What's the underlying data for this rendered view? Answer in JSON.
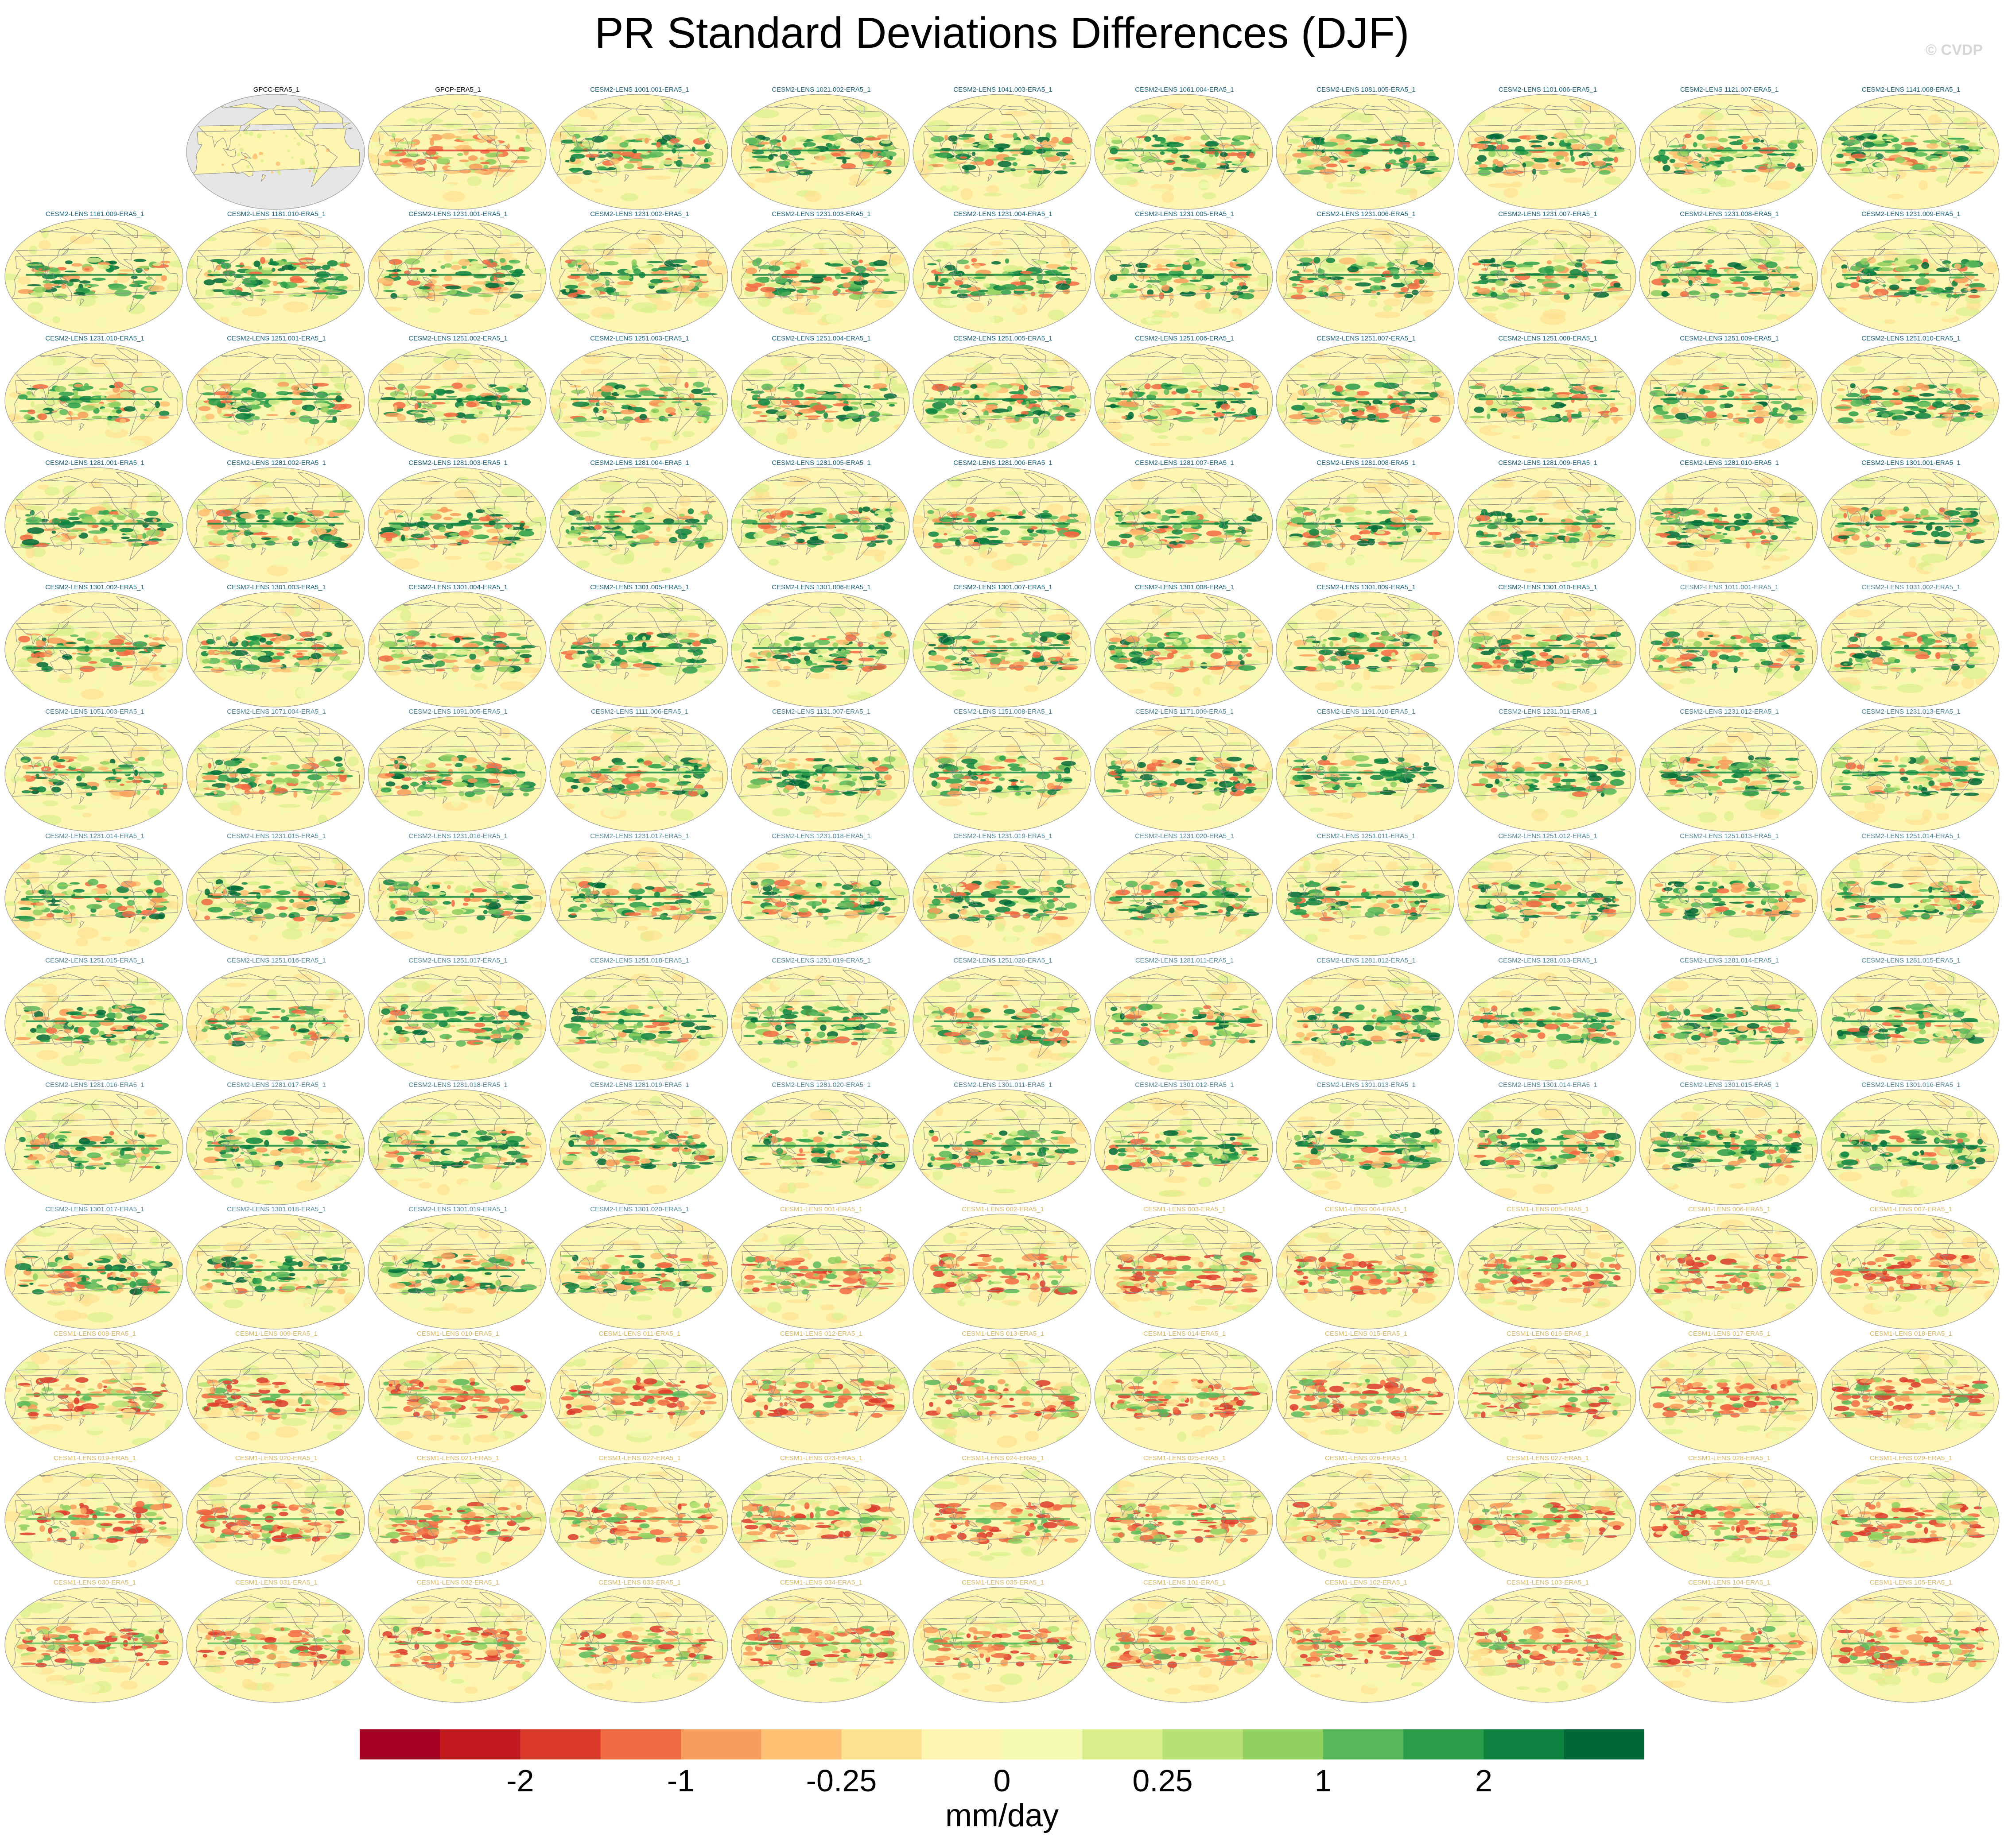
{
  "title": "PR Standard Deviations Differences (DJF)",
  "watermark": "© CVDP",
  "colors": {
    "cesm2_title": "#17607a",
    "cesm1_title": "#d9b760",
    "obs_title": "#000000",
    "ocean_obs": "#e6e6e6",
    "coast": "#8c8c8c"
  },
  "chart_data": {
    "type": "heatmap",
    "title": "PR Standard Deviations Differences (DJF)",
    "units": "mm/day",
    "colorbar": {
      "ticks": [
        "-2",
        "-1",
        "-0.25",
        "0",
        "0.25",
        "1",
        "2"
      ],
      "colors": [
        "#a50026",
        "#c4191f",
        "#dc3b2c",
        "#f16a42",
        "#f79c5b",
        "#fdbf71",
        "#fde191",
        "#fef6b0",
        "#f3f9b0",
        "#d9ef8b",
        "#b7e074",
        "#91cf60",
        "#5ab85a",
        "#2a9d4a",
        "#0d8241",
        "#006837"
      ]
    },
    "grid": {
      "rows": 14,
      "cols": 11
    },
    "panels": [
      {
        "label": "GPCC-ERA5_1",
        "group": "obs",
        "row": 0,
        "col": 1
      },
      {
        "label": "GPCP-ERA5_1",
        "group": "obs",
        "row": 0,
        "col": 2
      },
      {
        "label": "CESM2-LENS 1001.001-ERA5_1",
        "group": "cesm2",
        "row": 0,
        "col": 3
      },
      {
        "label": "CESM2-LENS 1021.002-ERA5_1",
        "group": "cesm2",
        "row": 0,
        "col": 4
      },
      {
        "label": "CESM2-LENS 1041.003-ERA5_1",
        "group": "cesm2",
        "row": 0,
        "col": 5
      },
      {
        "label": "CESM2-LENS 1061.004-ERA5_1",
        "group": "cesm2",
        "row": 0,
        "col": 6
      },
      {
        "label": "CESM2-LENS 1081.005-ERA5_1",
        "group": "cesm2",
        "row": 0,
        "col": 7
      },
      {
        "label": "CESM2-LENS 1101.006-ERA5_1",
        "group": "cesm2",
        "row": 0,
        "col": 8
      },
      {
        "label": "CESM2-LENS 1121.007-ERA5_1",
        "group": "cesm2",
        "row": 0,
        "col": 9
      },
      {
        "label": "CESM2-LENS 1141.008-ERA5_1",
        "group": "cesm2",
        "row": 0,
        "col": 10
      },
      {
        "label": "CESM2-LENS 1161.009-ERA5_1",
        "group": "cesm2",
        "row": 1,
        "col": 0
      },
      {
        "label": "CESM2-LENS 1181.010-ERA5_1",
        "group": "cesm2",
        "row": 1,
        "col": 1
      },
      {
        "label": "CESM2-LENS 1231.001-ERA5_1",
        "group": "cesm2",
        "row": 1,
        "col": 2
      },
      {
        "label": "CESM2-LENS 1231.002-ERA5_1",
        "group": "cesm2",
        "row": 1,
        "col": 3
      },
      {
        "label": "CESM2-LENS 1231.003-ERA5_1",
        "group": "cesm2",
        "row": 1,
        "col": 4
      },
      {
        "label": "CESM2-LENS 1231.004-ERA5_1",
        "group": "cesm2",
        "row": 1,
        "col": 5
      },
      {
        "label": "CESM2-LENS 1231.005-ERA5_1",
        "group": "cesm2",
        "row": 1,
        "col": 6
      },
      {
        "label": "CESM2-LENS 1231.006-ERA5_1",
        "group": "cesm2",
        "row": 1,
        "col": 7
      },
      {
        "label": "CESM2-LENS 1231.007-ERA5_1",
        "group": "cesm2",
        "row": 1,
        "col": 8
      },
      {
        "label": "CESM2-LENS 1231.008-ERA5_1",
        "group": "cesm2",
        "row": 1,
        "col": 9
      },
      {
        "label": "CESM2-LENS 1231.009-ERA5_1",
        "group": "cesm2",
        "row": 1,
        "col": 10
      },
      {
        "label": "CESM2-LENS 1231.010-ERA5_1",
        "group": "cesm2",
        "row": 2,
        "col": 0
      },
      {
        "label": "CESM2-LENS 1251.001-ERA5_1",
        "group": "cesm2",
        "row": 2,
        "col": 1
      },
      {
        "label": "CESM2-LENS 1251.002-ERA5_1",
        "group": "cesm2",
        "row": 2,
        "col": 2
      },
      {
        "label": "CESM2-LENS 1251.003-ERA5_1",
        "group": "cesm2",
        "row": 2,
        "col": 3
      },
      {
        "label": "CESM2-LENS 1251.004-ERA5_1",
        "group": "cesm2",
        "row": 2,
        "col": 4
      },
      {
        "label": "CESM2-LENS 1251.005-ERA5_1",
        "group": "cesm2",
        "row": 2,
        "col": 5
      },
      {
        "label": "CESM2-LENS 1251.006-ERA5_1",
        "group": "cesm2",
        "row": 2,
        "col": 6
      },
      {
        "label": "CESM2-LENS 1251.007-ERA5_1",
        "group": "cesm2",
        "row": 2,
        "col": 7
      },
      {
        "label": "CESM2-LENS 1251.008-ERA5_1",
        "group": "cesm2",
        "row": 2,
        "col": 8
      },
      {
        "label": "CESM2-LENS 1251.009-ERA5_1",
        "group": "cesm2",
        "row": 2,
        "col": 9
      },
      {
        "label": "CESM2-LENS 1251.010-ERA5_1",
        "group": "cesm2",
        "row": 2,
        "col": 10
      },
      {
        "label": "CESM2-LENS 1281.001-ERA5_1",
        "group": "cesm2",
        "row": 3,
        "col": 0
      },
      {
        "label": "CESM2-LENS 1281.002-ERA5_1",
        "group": "cesm2",
        "row": 3,
        "col": 1
      },
      {
        "label": "CESM2-LENS 1281.003-ERA5_1",
        "group": "cesm2",
        "row": 3,
        "col": 2
      },
      {
        "label": "CESM2-LENS 1281.004-ERA5_1",
        "group": "cesm2",
        "row": 3,
        "col": 3
      },
      {
        "label": "CESM2-LENS 1281.005-ERA5_1",
        "group": "cesm2",
        "row": 3,
        "col": 4
      },
      {
        "label": "CESM2-LENS 1281.006-ERA5_1",
        "group": "cesm2",
        "row": 3,
        "col": 5
      },
      {
        "label": "CESM2-LENS 1281.007-ERA5_1",
        "group": "cesm2",
        "row": 3,
        "col": 6
      },
      {
        "label": "CESM2-LENS 1281.008-ERA5_1",
        "group": "cesm2",
        "row": 3,
        "col": 7
      },
      {
        "label": "CESM2-LENS 1281.009-ERA5_1",
        "group": "cesm2",
        "row": 3,
        "col": 8
      },
      {
        "label": "CESM2-LENS 1281.010-ERA5_1",
        "group": "cesm2",
        "row": 3,
        "col": 9
      },
      {
        "label": "CESM2-LENS 1301.001-ERA5_1",
        "group": "cesm2",
        "row": 3,
        "col": 10
      },
      {
        "label": "CESM2-LENS 1301.002-ERA5_1",
        "group": "cesm2",
        "row": 4,
        "col": 0
      },
      {
        "label": "CESM2-LENS 1301.003-ERA5_1",
        "group": "cesm2",
        "row": 4,
        "col": 1
      },
      {
        "label": "CESM2-LENS 1301.004-ERA5_1",
        "group": "cesm2",
        "row": 4,
        "col": 2
      },
      {
        "label": "CESM2-LENS 1301.005-ERA5_1",
        "group": "cesm2",
        "row": 4,
        "col": 3
      },
      {
        "label": "CESM2-LENS 1301.006-ERA5_1",
        "group": "cesm2",
        "row": 4,
        "col": 4
      },
      {
        "label": "CESM2-LENS 1301.007-ERA5_1",
        "group": "cesm2",
        "row": 4,
        "col": 5
      },
      {
        "label": "CESM2-LENS 1301.008-ERA5_1",
        "group": "cesm2",
        "row": 4,
        "col": 6
      },
      {
        "label": "CESM2-LENS 1301.009-ERA5_1",
        "group": "cesm2",
        "row": 4,
        "col": 7
      },
      {
        "label": "CESM2-LENS 1301.010-ERA5_1",
        "group": "cesm2",
        "row": 4,
        "col": 8
      },
      {
        "label": "CESM2-LENS 1011.001-ERA5_1",
        "group": "cesm2smbb",
        "row": 4,
        "col": 9
      },
      {
        "label": "CESM2-LENS 1031.002-ERA5_1",
        "group": "cesm2smbb",
        "row": 4,
        "col": 10
      },
      {
        "label": "CESM2-LENS 1051.003-ERA5_1",
        "group": "cesm2smbb",
        "row": 5,
        "col": 0
      },
      {
        "label": "CESM2-LENS 1071.004-ERA5_1",
        "group": "cesm2smbb",
        "row": 5,
        "col": 1
      },
      {
        "label": "CESM2-LENS 1091.005-ERA5_1",
        "group": "cesm2smbb",
        "row": 5,
        "col": 2
      },
      {
        "label": "CESM2-LENS 1111.006-ERA5_1",
        "group": "cesm2smbb",
        "row": 5,
        "col": 3
      },
      {
        "label": "CESM2-LENS 1131.007-ERA5_1",
        "group": "cesm2smbb",
        "row": 5,
        "col": 4
      },
      {
        "label": "CESM2-LENS 1151.008-ERA5_1",
        "group": "cesm2smbb",
        "row": 5,
        "col": 5
      },
      {
        "label": "CESM2-LENS 1171.009-ERA5_1",
        "group": "cesm2smbb",
        "row": 5,
        "col": 6
      },
      {
        "label": "CESM2-LENS 1191.010-ERA5_1",
        "group": "cesm2smbb",
        "row": 5,
        "col": 7
      },
      {
        "label": "CESM2-LENS 1231.011-ERA5_1",
        "group": "cesm2smbb",
        "row": 5,
        "col": 8
      },
      {
        "label": "CESM2-LENS 1231.012-ERA5_1",
        "group": "cesm2smbb",
        "row": 5,
        "col": 9
      },
      {
        "label": "CESM2-LENS 1231.013-ERA5_1",
        "group": "cesm2smbb",
        "row": 5,
        "col": 10
      },
      {
        "label": "CESM2-LENS 1231.014-ERA5_1",
        "group": "cesm2smbb",
        "row": 6,
        "col": 0
      },
      {
        "label": "CESM2-LENS 1231.015-ERA5_1",
        "group": "cesm2smbb",
        "row": 6,
        "col": 1
      },
      {
        "label": "CESM2-LENS 1231.016-ERA5_1",
        "group": "cesm2smbb",
        "row": 6,
        "col": 2
      },
      {
        "label": "CESM2-LENS 1231.017-ERA5_1",
        "group": "cesm2smbb",
        "row": 6,
        "col": 3
      },
      {
        "label": "CESM2-LENS 1231.018-ERA5_1",
        "group": "cesm2smbb",
        "row": 6,
        "col": 4
      },
      {
        "label": "CESM2-LENS 1231.019-ERA5_1",
        "group": "cesm2smbb",
        "row": 6,
        "col": 5
      },
      {
        "label": "CESM2-LENS 1231.020-ERA5_1",
        "group": "cesm2smbb",
        "row": 6,
        "col": 6
      },
      {
        "label": "CESM2-LENS 1251.011-ERA5_1",
        "group": "cesm2smbb",
        "row": 6,
        "col": 7
      },
      {
        "label": "CESM2-LENS 1251.012-ERA5_1",
        "group": "cesm2smbb",
        "row": 6,
        "col": 8
      },
      {
        "label": "CESM2-LENS 1251.013-ERA5_1",
        "group": "cesm2smbb",
        "row": 6,
        "col": 9
      },
      {
        "label": "CESM2-LENS 1251.014-ERA5_1",
        "group": "cesm2smbb",
        "row": 6,
        "col": 10
      },
      {
        "label": "CESM2-LENS 1251.015-ERA5_1",
        "group": "cesm2smbb",
        "row": 7,
        "col": 0
      },
      {
        "label": "CESM2-LENS 1251.016-ERA5_1",
        "group": "cesm2smbb",
        "row": 7,
        "col": 1
      },
      {
        "label": "CESM2-LENS 1251.017-ERA5_1",
        "group": "cesm2smbb",
        "row": 7,
        "col": 2
      },
      {
        "label": "CESM2-LENS 1251.018-ERA5_1",
        "group": "cesm2smbb",
        "row": 7,
        "col": 3
      },
      {
        "label": "CESM2-LENS 1251.019-ERA5_1",
        "group": "cesm2smbb",
        "row": 7,
        "col": 4
      },
      {
        "label": "CESM2-LENS 1251.020-ERA5_1",
        "group": "cesm2smbb",
        "row": 7,
        "col": 5
      },
      {
        "label": "CESM2-LENS 1281.011-ERA5_1",
        "group": "cesm2smbb",
        "row": 7,
        "col": 6
      },
      {
        "label": "CESM2-LENS 1281.012-ERA5_1",
        "group": "cesm2smbb",
        "row": 7,
        "col": 7
      },
      {
        "label": "CESM2-LENS 1281.013-ERA5_1",
        "group": "cesm2smbb",
        "row": 7,
        "col": 8
      },
      {
        "label": "CESM2-LENS 1281.014-ERA5_1",
        "group": "cesm2smbb",
        "row": 7,
        "col": 9
      },
      {
        "label": "CESM2-LENS 1281.015-ERA5_1",
        "group": "cesm2smbb",
        "row": 7,
        "col": 10
      },
      {
        "label": "CESM2-LENS 1281.016-ERA5_1",
        "group": "cesm2smbb",
        "row": 8,
        "col": 0
      },
      {
        "label": "CESM2-LENS 1281.017-ERA5_1",
        "group": "cesm2smbb",
        "row": 8,
        "col": 1
      },
      {
        "label": "CESM2-LENS 1281.018-ERA5_1",
        "group": "cesm2smbb",
        "row": 8,
        "col": 2
      },
      {
        "label": "CESM2-LENS 1281.019-ERA5_1",
        "group": "cesm2smbb",
        "row": 8,
        "col": 3
      },
      {
        "label": "CESM2-LENS 1281.020-ERA5_1",
        "group": "cesm2smbb",
        "row": 8,
        "col": 4
      },
      {
        "label": "CESM2-LENS 1301.011-ERA5_1",
        "group": "cesm2smbb",
        "row": 8,
        "col": 5
      },
      {
        "label": "CESM2-LENS 1301.012-ERA5_1",
        "group": "cesm2smbb",
        "row": 8,
        "col": 6
      },
      {
        "label": "CESM2-LENS 1301.013-ERA5_1",
        "group": "cesm2smbb",
        "row": 8,
        "col": 7
      },
      {
        "label": "CESM2-LENS 1301.014-ERA5_1",
        "group": "cesm2smbb",
        "row": 8,
        "col": 8
      },
      {
        "label": "CESM2-LENS 1301.015-ERA5_1",
        "group": "cesm2smbb",
        "row": 8,
        "col": 9
      },
      {
        "label": "CESM2-LENS 1301.016-ERA5_1",
        "group": "cesm2smbb",
        "row": 8,
        "col": 10
      },
      {
        "label": "CESM2-LENS 1301.017-ERA5_1",
        "group": "cesm2smbb",
        "row": 9,
        "col": 0
      },
      {
        "label": "CESM2-LENS 1301.018-ERA5_1",
        "group": "cesm2smbb",
        "row": 9,
        "col": 1
      },
      {
        "label": "CESM2-LENS 1301.019-ERA5_1",
        "group": "cesm2smbb",
        "row": 9,
        "col": 2
      },
      {
        "label": "CESM2-LENS 1301.020-ERA5_1",
        "group": "cesm2smbb",
        "row": 9,
        "col": 3
      },
      {
        "label": "CESM1-LENS 001-ERA5_1",
        "group": "cesm1",
        "row": 9,
        "col": 4
      },
      {
        "label": "CESM1-LENS 002-ERA5_1",
        "group": "cesm1",
        "row": 9,
        "col": 5
      },
      {
        "label": "CESM1-LENS 003-ERA5_1",
        "group": "cesm1",
        "row": 9,
        "col": 6
      },
      {
        "label": "CESM1-LENS 004-ERA5_1",
        "group": "cesm1",
        "row": 9,
        "col": 7
      },
      {
        "label": "CESM1-LENS 005-ERA5_1",
        "group": "cesm1",
        "row": 9,
        "col": 8
      },
      {
        "label": "CESM1-LENS 006-ERA5_1",
        "group": "cesm1",
        "row": 9,
        "col": 9
      },
      {
        "label": "CESM1-LENS 007-ERA5_1",
        "group": "cesm1",
        "row": 9,
        "col": 10
      },
      {
        "label": "CESM1-LENS 008-ERA5_1",
        "group": "cesm1",
        "row": 10,
        "col": 0
      },
      {
        "label": "CESM1-LENS 009-ERA5_1",
        "group": "cesm1",
        "row": 10,
        "col": 1
      },
      {
        "label": "CESM1-LENS 010-ERA5_1",
        "group": "cesm1",
        "row": 10,
        "col": 2
      },
      {
        "label": "CESM1-LENS 011-ERA5_1",
        "group": "cesm1",
        "row": 10,
        "col": 3
      },
      {
        "label": "CESM1-LENS 012-ERA5_1",
        "group": "cesm1",
        "row": 10,
        "col": 4
      },
      {
        "label": "CESM1-LENS 013-ERA5_1",
        "group": "cesm1",
        "row": 10,
        "col": 5
      },
      {
        "label": "CESM1-LENS 014-ERA5_1",
        "group": "cesm1",
        "row": 10,
        "col": 6
      },
      {
        "label": "CESM1-LENS 015-ERA5_1",
        "group": "cesm1",
        "row": 10,
        "col": 7
      },
      {
        "label": "CESM1-LENS 016-ERA5_1",
        "group": "cesm1",
        "row": 10,
        "col": 8
      },
      {
        "label": "CESM1-LENS 017-ERA5_1",
        "group": "cesm1",
        "row": 10,
        "col": 9
      },
      {
        "label": "CESM1-LENS 018-ERA5_1",
        "group": "cesm1",
        "row": 10,
        "col": 10
      },
      {
        "label": "CESM1-LENS 019-ERA5_1",
        "group": "cesm1",
        "row": 11,
        "col": 0
      },
      {
        "label": "CESM1-LENS 020-ERA5_1",
        "group": "cesm1",
        "row": 11,
        "col": 1
      },
      {
        "label": "CESM1-LENS 021-ERA5_1",
        "group": "cesm1",
        "row": 11,
        "col": 2
      },
      {
        "label": "CESM1-LENS 022-ERA5_1",
        "group": "cesm1",
        "row": 11,
        "col": 3
      },
      {
        "label": "CESM1-LENS 023-ERA5_1",
        "group": "cesm1",
        "row": 11,
        "col": 4
      },
      {
        "label": "CESM1-LENS 024-ERA5_1",
        "group": "cesm1",
        "row": 11,
        "col": 5
      },
      {
        "label": "CESM1-LENS 025-ERA5_1",
        "group": "cesm1",
        "row": 11,
        "col": 6
      },
      {
        "label": "CESM1-LENS 026-ERA5_1",
        "group": "cesm1",
        "row": 11,
        "col": 7
      },
      {
        "label": "CESM1-LENS 027-ERA5_1",
        "group": "cesm1",
        "row": 11,
        "col": 8
      },
      {
        "label": "CESM1-LENS 028-ERA5_1",
        "group": "cesm1",
        "row": 11,
        "col": 9
      },
      {
        "label": "CESM1-LENS 029-ERA5_1",
        "group": "cesm1",
        "row": 11,
        "col": 10
      },
      {
        "label": "CESM1-LENS 030-ERA5_1",
        "group": "cesm1",
        "row": 12,
        "col": 0
      },
      {
        "label": "CESM1-LENS 031-ERA5_1",
        "group": "cesm1",
        "row": 12,
        "col": 1
      },
      {
        "label": "CESM1-LENS 032-ERA5_1",
        "group": "cesm1",
        "row": 12,
        "col": 2
      },
      {
        "label": "CESM1-LENS 033-ERA5_1",
        "group": "cesm1",
        "row": 12,
        "col": 3
      },
      {
        "label": "CESM1-LENS 034-ERA5_1",
        "group": "cesm1",
        "row": 12,
        "col": 4
      },
      {
        "label": "CESM1-LENS 035-ERA5_1",
        "group": "cesm1",
        "row": 12,
        "col": 5
      },
      {
        "label": "CESM1-LENS 101-ERA5_1",
        "group": "cesm1",
        "row": 12,
        "col": 6
      },
      {
        "label": "CESM1-LENS 102-ERA5_1",
        "group": "cesm1",
        "row": 12,
        "col": 7
      },
      {
        "label": "CESM1-LENS 103-ERA5_1",
        "group": "cesm1",
        "row": 12,
        "col": 8
      },
      {
        "label": "CESM1-LENS 104-ERA5_1",
        "group": "cesm1",
        "row": 12,
        "col": 9
      },
      {
        "label": "CESM1-LENS 105-ERA5_1",
        "group": "cesm1",
        "row": 12,
        "col": 10
      }
    ]
  }
}
